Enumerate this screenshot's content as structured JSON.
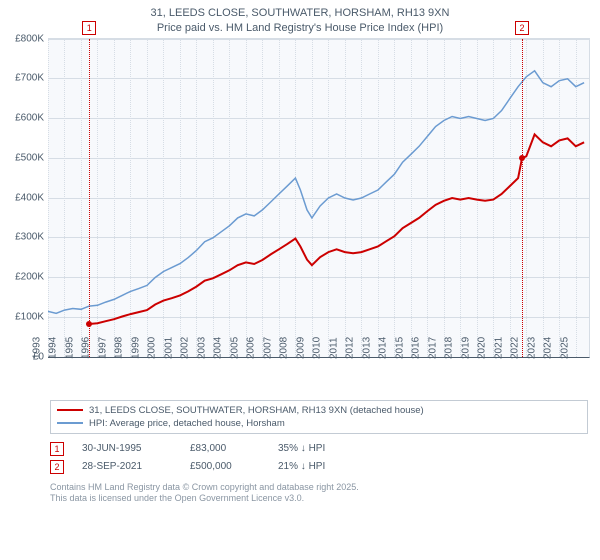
{
  "title_line1": "31, LEEDS CLOSE, SOUTHWATER, HORSHAM, RH13 9XN",
  "title_line2": "Price paid vs. HM Land Registry's House Price Index (HPI)",
  "chart": {
    "type": "line",
    "background_color": "#f7f9fc",
    "grid_color": "#d6dde5",
    "axis_color": "#4a5a6a",
    "ylim": [
      0,
      800000
    ],
    "ytick_step": 100000,
    "yticks": [
      "£0",
      "£100K",
      "£200K",
      "£300K",
      "£400K",
      "£500K",
      "£600K",
      "£700K",
      "£800K"
    ],
    "xlim": [
      1993,
      2025.8
    ],
    "xticks": [
      1993,
      1994,
      1995,
      1996,
      1997,
      1998,
      1999,
      2000,
      2001,
      2002,
      2003,
      2004,
      2005,
      2006,
      2007,
      2008,
      2009,
      2010,
      2011,
      2012,
      2013,
      2014,
      2015,
      2016,
      2017,
      2018,
      2019,
      2020,
      2021,
      2022,
      2023,
      2024,
      2025
    ],
    "series": [
      {
        "name": "hpi",
        "color": "#6b9bd1",
        "width": 1.5,
        "points": [
          [
            1993.0,
            115000
          ],
          [
            1993.5,
            110000
          ],
          [
            1994.0,
            118000
          ],
          [
            1994.5,
            122000
          ],
          [
            1995.0,
            120000
          ],
          [
            1995.5,
            128000
          ],
          [
            1996.0,
            130000
          ],
          [
            1996.5,
            138000
          ],
          [
            1997.0,
            145000
          ],
          [
            1997.5,
            155000
          ],
          [
            1998.0,
            165000
          ],
          [
            1998.5,
            172000
          ],
          [
            1999.0,
            180000
          ],
          [
            1999.5,
            200000
          ],
          [
            2000.0,
            215000
          ],
          [
            2000.5,
            225000
          ],
          [
            2001.0,
            235000
          ],
          [
            2001.5,
            250000
          ],
          [
            2002.0,
            268000
          ],
          [
            2002.5,
            290000
          ],
          [
            2003.0,
            300000
          ],
          [
            2003.5,
            315000
          ],
          [
            2004.0,
            330000
          ],
          [
            2004.5,
            350000
          ],
          [
            2005.0,
            360000
          ],
          [
            2005.5,
            355000
          ],
          [
            2006.0,
            370000
          ],
          [
            2006.5,
            390000
          ],
          [
            2007.0,
            410000
          ],
          [
            2007.5,
            430000
          ],
          [
            2008.0,
            450000
          ],
          [
            2008.3,
            420000
          ],
          [
            2008.7,
            370000
          ],
          [
            2009.0,
            350000
          ],
          [
            2009.5,
            380000
          ],
          [
            2010.0,
            400000
          ],
          [
            2010.5,
            410000
          ],
          [
            2011.0,
            400000
          ],
          [
            2011.5,
            395000
          ],
          [
            2012.0,
            400000
          ],
          [
            2012.5,
            410000
          ],
          [
            2013.0,
            420000
          ],
          [
            2013.5,
            440000
          ],
          [
            2014.0,
            460000
          ],
          [
            2014.5,
            490000
          ],
          [
            2015.0,
            510000
          ],
          [
            2015.5,
            530000
          ],
          [
            2016.0,
            555000
          ],
          [
            2016.5,
            580000
          ],
          [
            2017.0,
            595000
          ],
          [
            2017.5,
            605000
          ],
          [
            2018.0,
            600000
          ],
          [
            2018.5,
            605000
          ],
          [
            2019.0,
            600000
          ],
          [
            2019.5,
            595000
          ],
          [
            2020.0,
            600000
          ],
          [
            2020.5,
            620000
          ],
          [
            2021.0,
            650000
          ],
          [
            2021.5,
            680000
          ],
          [
            2022.0,
            705000
          ],
          [
            2022.5,
            720000
          ],
          [
            2023.0,
            690000
          ],
          [
            2023.5,
            680000
          ],
          [
            2024.0,
            695000
          ],
          [
            2024.5,
            700000
          ],
          [
            2025.0,
            680000
          ],
          [
            2025.5,
            690000
          ]
        ]
      },
      {
        "name": "price_paid",
        "color": "#cc0000",
        "width": 2,
        "points": [
          [
            1995.5,
            83000
          ],
          [
            1996.0,
            85000
          ],
          [
            1996.5,
            90000
          ],
          [
            1997.0,
            95000
          ],
          [
            1997.5,
            102000
          ],
          [
            1998.0,
            108000
          ],
          [
            1998.5,
            113000
          ],
          [
            1999.0,
            118000
          ],
          [
            1999.5,
            132000
          ],
          [
            2000.0,
            142000
          ],
          [
            2000.5,
            148000
          ],
          [
            2001.0,
            155000
          ],
          [
            2001.5,
            165000
          ],
          [
            2002.0,
            177000
          ],
          [
            2002.5,
            192000
          ],
          [
            2003.0,
            198000
          ],
          [
            2003.5,
            208000
          ],
          [
            2004.0,
            218000
          ],
          [
            2004.5,
            231000
          ],
          [
            2005.0,
            238000
          ],
          [
            2005.5,
            234000
          ],
          [
            2006.0,
            244000
          ],
          [
            2006.5,
            258000
          ],
          [
            2007.0,
            271000
          ],
          [
            2007.5,
            284000
          ],
          [
            2008.0,
            298000
          ],
          [
            2008.3,
            278000
          ],
          [
            2008.7,
            245000
          ],
          [
            2009.0,
            231000
          ],
          [
            2009.5,
            251000
          ],
          [
            2010.0,
            264000
          ],
          [
            2010.5,
            271000
          ],
          [
            2011.0,
            264000
          ],
          [
            2011.5,
            261000
          ],
          [
            2012.0,
            264000
          ],
          [
            2012.5,
            271000
          ],
          [
            2013.0,
            278000
          ],
          [
            2013.5,
            291000
          ],
          [
            2014.0,
            304000
          ],
          [
            2014.5,
            324000
          ],
          [
            2015.0,
            337000
          ],
          [
            2015.5,
            350000
          ],
          [
            2016.0,
            367000
          ],
          [
            2016.5,
            383000
          ],
          [
            2017.0,
            393000
          ],
          [
            2017.5,
            400000
          ],
          [
            2018.0,
            396000
          ],
          [
            2018.5,
            400000
          ],
          [
            2019.0,
            396000
          ],
          [
            2019.5,
            393000
          ],
          [
            2020.0,
            396000
          ],
          [
            2020.5,
            410000
          ],
          [
            2021.0,
            430000
          ],
          [
            2021.5,
            450000
          ],
          [
            2021.74,
            500000
          ],
          [
            2022.0,
            505000
          ],
          [
            2022.5,
            560000
          ],
          [
            2023.0,
            540000
          ],
          [
            2023.5,
            530000
          ],
          [
            2024.0,
            545000
          ],
          [
            2024.5,
            550000
          ],
          [
            2025.0,
            530000
          ],
          [
            2025.5,
            540000
          ]
        ]
      }
    ],
    "sale_markers": [
      {
        "num": "1",
        "x": 1995.5,
        "y": 83000,
        "color": "#cc0000"
      },
      {
        "num": "2",
        "x": 2021.74,
        "y": 500000,
        "color": "#cc0000"
      }
    ]
  },
  "legend": [
    {
      "color": "#cc0000",
      "label": "31, LEEDS CLOSE, SOUTHWATER, HORSHAM, RH13 9XN (detached house)"
    },
    {
      "color": "#6b9bd1",
      "label": "HPI: Average price, detached house, Horsham"
    }
  ],
  "footnotes": [
    {
      "num": "1",
      "date": "30-JUN-1995",
      "price": "£83,000",
      "delta": "35% ↓ HPI"
    },
    {
      "num": "2",
      "date": "28-SEP-2021",
      "price": "£500,000",
      "delta": "21% ↓ HPI"
    }
  ],
  "attribution_line1": "Contains HM Land Registry data © Crown copyright and database right 2025.",
  "attribution_line2": "This data is licensed under the Open Government Licence v3.0."
}
